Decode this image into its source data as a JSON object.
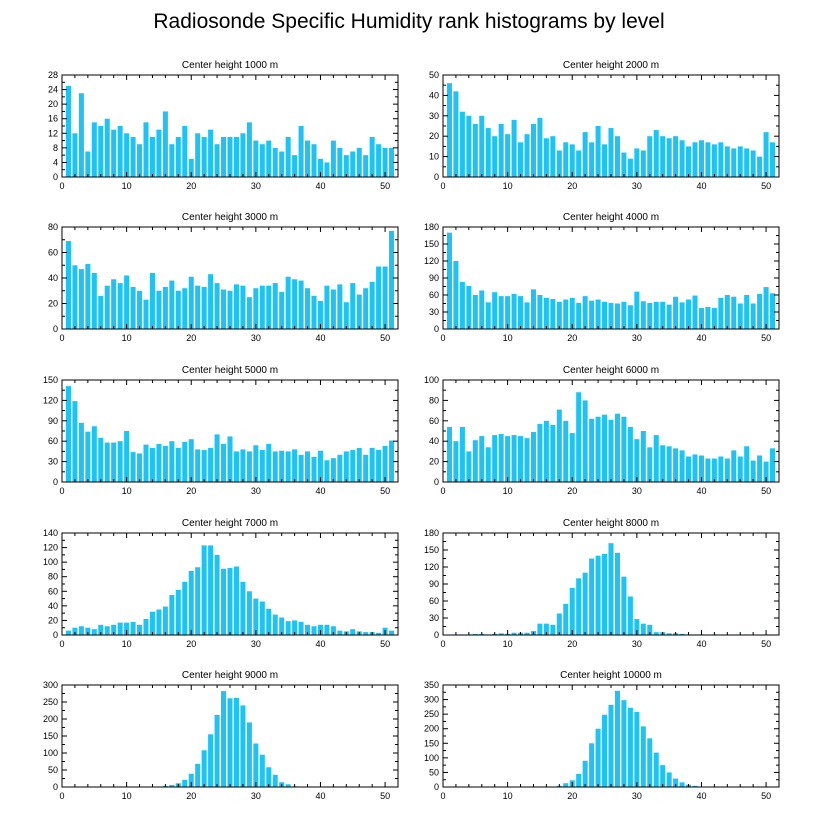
{
  "title": "Radiosonde Specific Humidity rank histograms by level",
  "colors": {
    "bar": "#1ec3f5",
    "axis": "#000000",
    "background": "#ffffff"
  },
  "chart_data": [
    {
      "type": "bar",
      "title": "Center height 1000 m",
      "xlim": [
        0,
        52
      ],
      "ylim": [
        0,
        28
      ],
      "xticks": [
        0,
        10,
        20,
        30,
        40,
        50
      ],
      "yticks": [
        0,
        4,
        8,
        12,
        16,
        20,
        24,
        28
      ],
      "x": [
        1,
        2,
        3,
        4,
        5,
        6,
        7,
        8,
        9,
        10,
        11,
        12,
        13,
        14,
        15,
        16,
        17,
        18,
        19,
        20,
        21,
        22,
        23,
        24,
        25,
        26,
        27,
        28,
        29,
        30,
        31,
        32,
        33,
        34,
        35,
        36,
        37,
        38,
        39,
        40,
        41,
        42,
        43,
        44,
        45,
        46,
        47,
        48,
        49,
        50,
        51
      ],
      "values": [
        25,
        12,
        23,
        7,
        15,
        14,
        16,
        13,
        14,
        12,
        11,
        9,
        15,
        11,
        13,
        18,
        9,
        11,
        14,
        5,
        12,
        11,
        13,
        9,
        11,
        11,
        11,
        12,
        15,
        10,
        9,
        10,
        8,
        7,
        11,
        6,
        14,
        10,
        9,
        5,
        4,
        10,
        8,
        6,
        7,
        8,
        6,
        11,
        9,
        8,
        8
      ]
    },
    {
      "type": "bar",
      "title": "Center height 2000 m",
      "xlim": [
        0,
        52
      ],
      "ylim": [
        0,
        50
      ],
      "xticks": [
        0,
        10,
        20,
        30,
        40,
        50
      ],
      "yticks": [
        0,
        10,
        20,
        30,
        40,
        50
      ],
      "x": [
        1,
        2,
        3,
        4,
        5,
        6,
        7,
        8,
        9,
        10,
        11,
        12,
        13,
        14,
        15,
        16,
        17,
        18,
        19,
        20,
        21,
        22,
        23,
        24,
        25,
        26,
        27,
        28,
        29,
        30,
        31,
        32,
        33,
        34,
        35,
        36,
        37,
        38,
        39,
        40,
        41,
        42,
        43,
        44,
        45,
        46,
        47,
        48,
        49,
        50,
        51
      ],
      "values": [
        46,
        42,
        32,
        30,
        26,
        30,
        24,
        20,
        26,
        21,
        28,
        17,
        21,
        26,
        29,
        19,
        20,
        13,
        17,
        16,
        13,
        22,
        17,
        25,
        16,
        24,
        20,
        12,
        9,
        14,
        13,
        20,
        23,
        20,
        19,
        20,
        18,
        15,
        17,
        18,
        17,
        16,
        17,
        15,
        14,
        15,
        14,
        13,
        10,
        22,
        17
      ]
    },
    {
      "type": "bar",
      "title": "Center height 3000 m",
      "xlim": [
        0,
        52
      ],
      "ylim": [
        0,
        80
      ],
      "xticks": [
        0,
        10,
        20,
        30,
        40,
        50
      ],
      "yticks": [
        0,
        20,
        40,
        60,
        80
      ],
      "x": [
        1,
        2,
        3,
        4,
        5,
        6,
        7,
        8,
        9,
        10,
        11,
        12,
        13,
        14,
        15,
        16,
        17,
        18,
        19,
        20,
        21,
        22,
        23,
        24,
        25,
        26,
        27,
        28,
        29,
        30,
        31,
        32,
        33,
        34,
        35,
        36,
        37,
        38,
        39,
        40,
        41,
        42,
        43,
        44,
        45,
        46,
        47,
        48,
        49,
        50,
        51
      ],
      "values": [
        69,
        50,
        47,
        51,
        44,
        26,
        34,
        39,
        36,
        42,
        33,
        30,
        23,
        44,
        30,
        33,
        38,
        30,
        32,
        41,
        34,
        33,
        43,
        36,
        31,
        30,
        35,
        34,
        25,
        32,
        34,
        34,
        36,
        29,
        41,
        39,
        38,
        32,
        26,
        22,
        34,
        31,
        35,
        21,
        36,
        27,
        32,
        37,
        49,
        49,
        77
      ]
    },
    {
      "type": "bar",
      "title": "Center height 4000 m",
      "xlim": [
        0,
        52
      ],
      "ylim": [
        0,
        180
      ],
      "xticks": [
        0,
        10,
        20,
        30,
        40,
        50
      ],
      "yticks": [
        0,
        30,
        60,
        90,
        120,
        150,
        180
      ],
      "x": [
        1,
        2,
        3,
        4,
        5,
        6,
        7,
        8,
        9,
        10,
        11,
        12,
        13,
        14,
        15,
        16,
        17,
        18,
        19,
        20,
        21,
        22,
        23,
        24,
        25,
        26,
        27,
        28,
        29,
        30,
        31,
        32,
        33,
        34,
        35,
        36,
        37,
        38,
        39,
        40,
        41,
        42,
        43,
        44,
        45,
        46,
        47,
        48,
        49,
        50,
        51
      ],
      "values": [
        170,
        120,
        83,
        76,
        60,
        68,
        47,
        65,
        58,
        58,
        62,
        58,
        47,
        70,
        60,
        55,
        53,
        48,
        52,
        55,
        46,
        58,
        50,
        52,
        48,
        46,
        45,
        48,
        42,
        66,
        49,
        46,
        48,
        48,
        43,
        57,
        47,
        52,
        59,
        37,
        39,
        37,
        55,
        60,
        57,
        45,
        60,
        45,
        62,
        74,
        63
      ]
    },
    {
      "type": "bar",
      "title": "Center height 5000 m",
      "xlim": [
        0,
        52
      ],
      "ylim": [
        0,
        150
      ],
      "xticks": [
        0,
        10,
        20,
        30,
        40,
        50
      ],
      "yticks": [
        0,
        30,
        60,
        90,
        120,
        150
      ],
      "x": [
        1,
        2,
        3,
        4,
        5,
        6,
        7,
        8,
        9,
        10,
        11,
        12,
        13,
        14,
        15,
        16,
        17,
        18,
        19,
        20,
        21,
        22,
        23,
        24,
        25,
        26,
        27,
        28,
        29,
        30,
        31,
        32,
        33,
        34,
        35,
        36,
        37,
        38,
        39,
        40,
        41,
        42,
        43,
        44,
        45,
        46,
        47,
        48,
        49,
        50,
        51
      ],
      "values": [
        141,
        119,
        87,
        74,
        82,
        65,
        58,
        58,
        60,
        75,
        44,
        42,
        55,
        50,
        56,
        53,
        60,
        50,
        59,
        63,
        48,
        47,
        50,
        70,
        56,
        67,
        45,
        48,
        45,
        54,
        47,
        56,
        45,
        46,
        45,
        48,
        40,
        45,
        37,
        46,
        32,
        35,
        40,
        45,
        47,
        50,
        40,
        50,
        47,
        53,
        61
      ]
    },
    {
      "type": "bar",
      "title": "Center height 6000 m",
      "xlim": [
        0,
        52
      ],
      "ylim": [
        0,
        100
      ],
      "xticks": [
        0,
        10,
        20,
        30,
        40,
        50
      ],
      "yticks": [
        0,
        20,
        40,
        60,
        80,
        100
      ],
      "x": [
        1,
        2,
        3,
        4,
        5,
        6,
        7,
        8,
        9,
        10,
        11,
        12,
        13,
        14,
        15,
        16,
        17,
        18,
        19,
        20,
        21,
        22,
        23,
        24,
        25,
        26,
        27,
        28,
        29,
        30,
        31,
        32,
        33,
        34,
        35,
        36,
        37,
        38,
        39,
        40,
        41,
        42,
        43,
        44,
        45,
        46,
        47,
        48,
        49,
        50,
        51
      ],
      "values": [
        54,
        40,
        54,
        30,
        41,
        45,
        34,
        46,
        47,
        45,
        46,
        45,
        43,
        49,
        57,
        60,
        56,
        71,
        60,
        48,
        88,
        80,
        62,
        64,
        66,
        61,
        67,
        64,
        54,
        42,
        50,
        34,
        46,
        36,
        35,
        33,
        31,
        25,
        27,
        26,
        23,
        23,
        25,
        23,
        31,
        25,
        35,
        21,
        26,
        20,
        33
      ]
    },
    {
      "type": "bar",
      "title": "Center height 7000 m",
      "xlim": [
        0,
        52
      ],
      "ylim": [
        0,
        140
      ],
      "xticks": [
        0,
        10,
        20,
        30,
        40,
        50
      ],
      "yticks": [
        0,
        20,
        40,
        60,
        80,
        100,
        120,
        140
      ],
      "x": [
        1,
        2,
        3,
        4,
        5,
        6,
        7,
        8,
        9,
        10,
        11,
        12,
        13,
        14,
        15,
        16,
        17,
        18,
        19,
        20,
        21,
        22,
        23,
        24,
        25,
        26,
        27,
        28,
        29,
        30,
        31,
        32,
        33,
        34,
        35,
        36,
        37,
        38,
        39,
        40,
        41,
        42,
        43,
        44,
        45,
        46,
        47,
        48,
        49,
        50,
        51
      ],
      "values": [
        6,
        10,
        12,
        10,
        8,
        14,
        12,
        14,
        17,
        17,
        18,
        14,
        22,
        32,
        35,
        39,
        55,
        62,
        73,
        88,
        93,
        123,
        123,
        110,
        91,
        92,
        94,
        73,
        60,
        50,
        46,
        36,
        28,
        24,
        19,
        20,
        18,
        14,
        12,
        14,
        14,
        12,
        6,
        5,
        8,
        5,
        4,
        4,
        3,
        10,
        6
      ]
    },
    {
      "type": "bar",
      "title": "Center height 8000 m",
      "xlim": [
        0,
        52
      ],
      "ylim": [
        0,
        180
      ],
      "xticks": [
        0,
        10,
        20,
        30,
        40,
        50
      ],
      "yticks": [
        0,
        30,
        60,
        90,
        120,
        150,
        180
      ],
      "x": [
        1,
        2,
        3,
        4,
        5,
        6,
        7,
        8,
        9,
        10,
        11,
        12,
        13,
        14,
        15,
        16,
        17,
        18,
        19,
        20,
        21,
        22,
        23,
        24,
        25,
        26,
        27,
        28,
        29,
        30,
        31,
        32,
        33,
        34,
        35,
        36,
        37,
        38,
        39,
        40,
        41,
        42,
        43,
        44,
        45,
        46,
        47,
        48,
        49,
        50,
        51
      ],
      "values": [
        0,
        1,
        1,
        1,
        2,
        2,
        1,
        2,
        3,
        2,
        4,
        4,
        4,
        7,
        20,
        20,
        18,
        38,
        55,
        83,
        100,
        110,
        135,
        140,
        143,
        162,
        145,
        103,
        68,
        28,
        20,
        18,
        5,
        5,
        3,
        3,
        2,
        1,
        1,
        1,
        0,
        1,
        0,
        0,
        0,
        0,
        1,
        0,
        0,
        1,
        0
      ]
    },
    {
      "type": "bar",
      "title": "Center height 9000 m",
      "xlim": [
        0,
        52
      ],
      "ylim": [
        0,
        300
      ],
      "xticks": [
        0,
        10,
        20,
        30,
        40,
        50
      ],
      "yticks": [
        0,
        50,
        100,
        150,
        200,
        250,
        300
      ],
      "x": [
        1,
        2,
        3,
        4,
        5,
        6,
        7,
        8,
        9,
        10,
        11,
        12,
        13,
        14,
        15,
        16,
        17,
        18,
        19,
        20,
        21,
        22,
        23,
        24,
        25,
        26,
        27,
        28,
        29,
        30,
        31,
        32,
        33,
        34,
        35,
        36,
        37,
        38,
        39,
        40,
        41,
        42,
        43,
        44,
        45,
        46,
        47,
        48,
        49,
        50,
        51
      ],
      "values": [
        0,
        0,
        0,
        0,
        0,
        0,
        0,
        0,
        0,
        0,
        0,
        0,
        0,
        0,
        1,
        3,
        6,
        11,
        21,
        39,
        68,
        108,
        155,
        212,
        282,
        261,
        262,
        240,
        190,
        128,
        95,
        58,
        36,
        14,
        8,
        2,
        1,
        1,
        0,
        0,
        0,
        0,
        0,
        0,
        0,
        0,
        0,
        0,
        0,
        0,
        0
      ]
    },
    {
      "type": "bar",
      "title": "Center height 10000 m",
      "xlim": [
        0,
        52
      ],
      "ylim": [
        0,
        350
      ],
      "xticks": [
        0,
        10,
        20,
        30,
        40,
        50
      ],
      "yticks": [
        0,
        50,
        100,
        150,
        200,
        250,
        300,
        350
      ],
      "x": [
        1,
        2,
        3,
        4,
        5,
        6,
        7,
        8,
        9,
        10,
        11,
        12,
        13,
        14,
        15,
        16,
        17,
        18,
        19,
        20,
        21,
        22,
        23,
        24,
        25,
        26,
        27,
        28,
        29,
        30,
        31,
        32,
        33,
        34,
        35,
        36,
        37,
        38,
        39,
        40,
        41,
        42,
        43,
        44,
        45,
        46,
        47,
        48,
        49,
        50,
        51
      ],
      "values": [
        0,
        0,
        0,
        0,
        0,
        0,
        0,
        0,
        0,
        0,
        0,
        0,
        0,
        0,
        0,
        0,
        1,
        4,
        13,
        23,
        45,
        90,
        150,
        200,
        248,
        282,
        330,
        298,
        272,
        258,
        208,
        167,
        118,
        75,
        50,
        29,
        16,
        8,
        4,
        1,
        1,
        0,
        0,
        0,
        0,
        0,
        0,
        0,
        0,
        0,
        0
      ]
    }
  ]
}
